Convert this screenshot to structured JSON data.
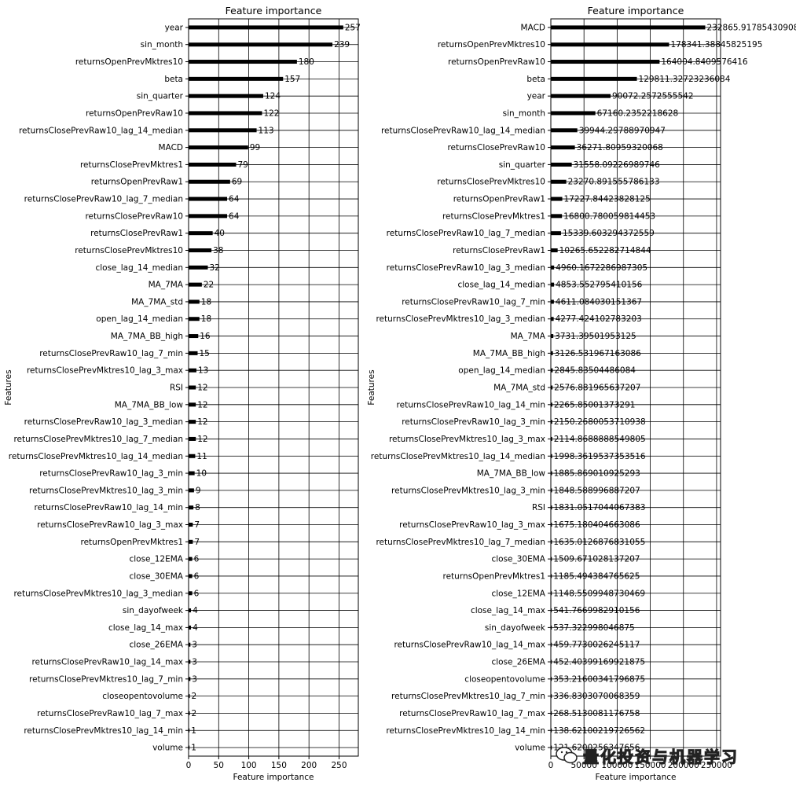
{
  "chart_data": [
    {
      "type": "bar",
      "orientation": "horizontal",
      "title": "Feature importance",
      "xlabel": "Feature importance",
      "ylabel": "Features",
      "xlim": [
        0,
        282
      ],
      "xticks": [
        0,
        50,
        100,
        150,
        200,
        250
      ],
      "grid": true,
      "categories": [
        "year",
        "sin_month",
        "returnsOpenPrevMktres10",
        "beta",
        "sin_quarter",
        "returnsOpenPrevRaw10",
        "returnsClosePrevRaw10_lag_14_median",
        "MACD",
        "returnsClosePrevMktres1",
        "returnsOpenPrevRaw1",
        "returnsClosePrevRaw10_lag_7_median",
        "returnsClosePrevRaw10",
        "returnsClosePrevRaw1",
        "returnsClosePrevMktres10",
        "close_lag_14_median",
        "MA_7MA",
        "MA_7MA_std",
        "open_lag_14_median",
        "MA_7MA_BB_high",
        "returnsClosePrevRaw10_lag_7_min",
        "returnsClosePrevMktres10_lag_3_max",
        "RSI",
        "MA_7MA_BB_low",
        "returnsClosePrevRaw10_lag_3_median",
        "returnsClosePrevMktres10_lag_7_median",
        "returnsClosePrevMktres10_lag_14_median",
        "returnsClosePrevRaw10_lag_3_min",
        "returnsClosePrevMktres10_lag_3_min",
        "returnsClosePrevRaw10_lag_14_min",
        "returnsClosePrevRaw10_lag_3_max",
        "returnsOpenPrevMktres1",
        "close_12EMA",
        "close_30EMA",
        "returnsClosePrevMktres10_lag_3_median",
        "sin_dayofweek",
        "close_lag_14_max",
        "close_26EMA",
        "returnsClosePrevRaw10_lag_14_max",
        "returnsClosePrevMktres10_lag_7_min",
        "closeopentovolume",
        "returnsClosePrevRaw10_lag_7_max",
        "returnsClosePrevMktres10_lag_14_min",
        "volume"
      ],
      "values": [
        257,
        239,
        180,
        157,
        124,
        122,
        113,
        99,
        79,
        69,
        64,
        64,
        40,
        38,
        32,
        22,
        18,
        18,
        16,
        15,
        13,
        12,
        12,
        12,
        12,
        11,
        10,
        9,
        8,
        7,
        7,
        6,
        6,
        6,
        4,
        4,
        3,
        3,
        3,
        2,
        2,
        1,
        1
      ],
      "value_labels": [
        "257",
        "239",
        "180",
        "157",
        "124",
        "122",
        "113",
        "99",
        "79",
        "69",
        "64",
        "64",
        "40",
        "38",
        "32",
        "22",
        "18",
        "18",
        "16",
        "15",
        "13",
        "12",
        "12",
        "12",
        "12",
        "11",
        "10",
        "9",
        "8",
        "7",
        "7",
        "6",
        "6",
        "6",
        "4",
        "4",
        "3",
        "3",
        "3",
        "2",
        "2",
        "1",
        "1"
      ]
    },
    {
      "type": "bar",
      "orientation": "horizontal",
      "title": "Feature importance",
      "xlabel": "Feature importance",
      "ylabel": "Features",
      "xlim": [
        0,
        256000
      ],
      "xticks": [
        0,
        50000,
        100000,
        150000,
        200000,
        250000
      ],
      "grid": true,
      "categories": [
        "MACD",
        "returnsOpenPrevMktres10",
        "returnsOpenPrevRaw10",
        "beta",
        "year",
        "sin_month",
        "returnsClosePrevRaw10_lag_14_median",
        "returnsClosePrevRaw10",
        "sin_quarter",
        "returnsClosePrevMktres10",
        "returnsOpenPrevRaw1",
        "returnsClosePrevMktres1",
        "returnsClosePrevRaw10_lag_7_median",
        "returnsClosePrevRaw1",
        "returnsClosePrevRaw10_lag_3_median",
        "close_lag_14_median",
        "returnsClosePrevRaw10_lag_7_min",
        "returnsClosePrevMktres10_lag_3_median",
        "MA_7MA",
        "MA_7MA_BB_high",
        "open_lag_14_median",
        "MA_7MA_std",
        "returnsClosePrevRaw10_lag_14_min",
        "returnsClosePrevRaw10_lag_3_min",
        "returnsClosePrevMktres10_lag_3_max",
        "returnsClosePrevMktres10_lag_14_median",
        "MA_7MA_BB_low",
        "returnsClosePrevMktres10_lag_3_min",
        "RSI",
        "returnsClosePrevRaw10_lag_3_max",
        "returnsClosePrevMktres10_lag_7_median",
        "close_30EMA",
        "returnsOpenPrevMktres1",
        "close_12EMA",
        "close_lag_14_max",
        "sin_dayofweek",
        "returnsClosePrevRaw10_lag_14_max",
        "close_26EMA",
        "closeopentovolume",
        "returnsClosePrevMktres10_lag_7_min",
        "returnsClosePrevRaw10_lag_7_max",
        "returnsClosePrevMktres10_lag_14_min",
        "volume"
      ],
      "values": [
        232865.91785430908,
        178341.38845825195,
        164004.8409576416,
        129811.32723236084,
        90072.2572555542,
        67160.2352218628,
        39944.29788970947,
        36271.80959320068,
        31558.09226989746,
        23270.891555786133,
        17227.84423828125,
        16800.780059814453,
        15339.603294372559,
        10265.652282714844,
        4960.1672286987305,
        4853.552795410156,
        4611.084030151367,
        4277.424102783203,
        3731.39501953125,
        3126.531967163086,
        2845.83504486084,
        2576.881965637207,
        2265.85001373291,
        2150.2680053710938,
        2114.8688888549805,
        1998.3619537353516,
        1885.869010925293,
        1848.588996887207,
        1831.0517044067383,
        1675.180404663086,
        1635.0126876831055,
        1509.671028137207,
        1185.494384765625,
        1148.5509948730469,
        541.7669982910156,
        537.322998046875,
        459.7730026245117,
        452.40399169921875,
        353.21600341796875,
        336.8303070068359,
        268.5130081176758,
        138.62100219726562,
        121.6200256347656
      ],
      "value_labels": [
        "232865.91785430908",
        "178341.38845825195",
        "164004.8409576416",
        "129811.32723236084",
        "90072.2572555542",
        "67160.2352218628",
        "39944.29788970947",
        "36271.80959320068",
        "31558.09226989746",
        "23270.891555786133",
        "17227.84423828125",
        "16800.780059814453",
        "15339.603294372559",
        "10265.652282714844",
        "4960.1672286987305",
        "4853.552795410156",
        "4611.084030151367",
        "4277.424102783203",
        "3731.39501953125",
        "3126.531967163086",
        "2845.83504486084",
        "2576.881965637207",
        "2265.85001373291",
        "2150.2680053710938",
        "2114.8688888549805",
        "1998.3619537353516",
        "1885.869010925293",
        "1848.588996887207",
        "1831.0517044067383",
        "1675.180404663086",
        "1635.0126876831055",
        "1509.671028137207",
        "1185.494384765625",
        "1148.5509948730469",
        "541.7669982910156",
        "537.322998046875",
        "459.7730026245117",
        "452.40399169921875",
        "353.21600341796875",
        "336.8303070068359",
        "268.5130081176758",
        "138.62100219726562",
        "121.6200256347656"
      ]
    }
  ],
  "watermark": {
    "text": "量化投资与机器学习",
    "icon": "wechat-icon"
  }
}
